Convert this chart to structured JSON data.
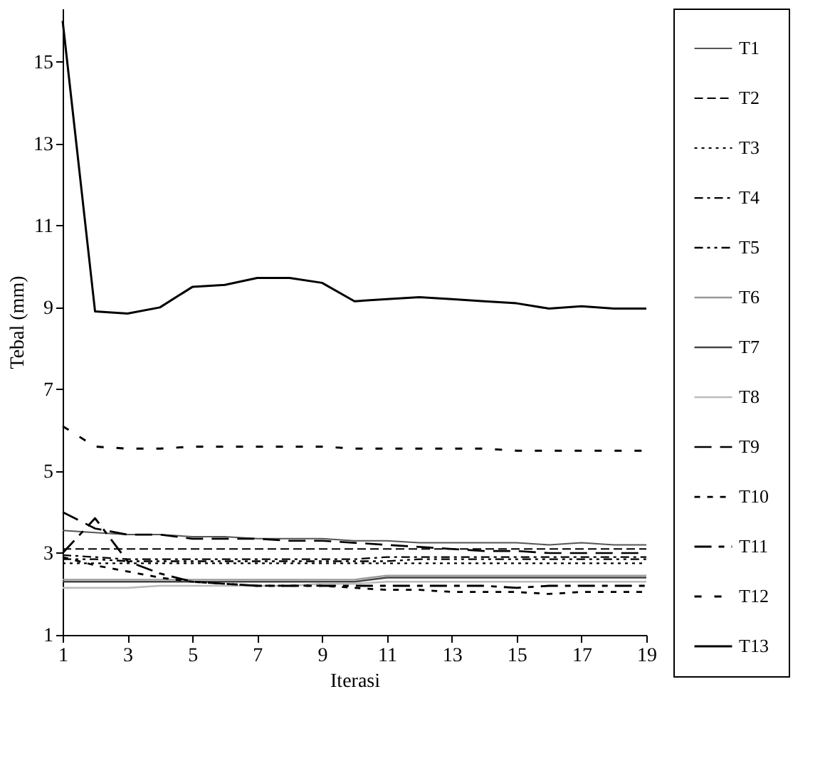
{
  "chart_data": {
    "type": "line",
    "xlabel": "Iterasi",
    "ylabel": "Tebal (mm)",
    "x": [
      1,
      2,
      3,
      4,
      5,
      6,
      7,
      8,
      9,
      10,
      11,
      12,
      13,
      14,
      15,
      16,
      17,
      18,
      19
    ],
    "xlim": [
      1,
      19
    ],
    "xticks": [
      1,
      3,
      5,
      7,
      9,
      11,
      13,
      15,
      17,
      19
    ],
    "ylim": [
      1,
      16.3
    ],
    "yticks": [
      1,
      3,
      5,
      7,
      9,
      11,
      13,
      15
    ],
    "grid": false,
    "legend": "right",
    "marker": "none",
    "series": [
      {
        "name": "T1",
        "color": "#555555",
        "line_style": "solid",
        "values": [
          3.55,
          3.5,
          3.45,
          3.45,
          3.4,
          3.4,
          3.35,
          3.35,
          3.35,
          3.3,
          3.3,
          3.25,
          3.25,
          3.25,
          3.25,
          3.2,
          3.25,
          3.2,
          3.2
        ]
      },
      {
        "name": "T2",
        "color": "#000000",
        "line_style": "dashed",
        "values": [
          3.1,
          3.1,
          3.1,
          3.1,
          3.1,
          3.1,
          3.1,
          3.1,
          3.1,
          3.1,
          3.1,
          3.1,
          3.1,
          3.1,
          3.1,
          3.1,
          3.1,
          3.1,
          3.1
        ]
      },
      {
        "name": "T3",
        "color": "#000000",
        "line_style": "dotted",
        "values": [
          2.75,
          2.75,
          2.75,
          2.75,
          2.75,
          2.75,
          2.75,
          2.75,
          2.75,
          2.75,
          2.75,
          2.75,
          2.75,
          2.75,
          2.75,
          2.75,
          2.75,
          2.75,
          2.75
        ]
      },
      {
        "name": "T4",
        "color": "#000000",
        "line_style": "dashed",
        "values": [
          2.95,
          2.9,
          2.85,
          2.85,
          2.85,
          2.85,
          2.85,
          2.85,
          2.85,
          2.85,
          2.9,
          2.9,
          2.9,
          2.9,
          2.9,
          2.9,
          2.9,
          2.9,
          2.9
        ]
      },
      {
        "name": "T5",
        "color": "#000000",
        "line_style": "dashed",
        "values": [
          2.85,
          2.85,
          2.8,
          2.8,
          2.8,
          2.8,
          2.8,
          2.8,
          2.8,
          2.8,
          2.8,
          2.85,
          2.85,
          2.85,
          2.85,
          2.85,
          2.85,
          2.85,
          2.85
        ]
      },
      {
        "name": "T6",
        "color": "#999999",
        "line_style": "solid",
        "values": [
          2.35,
          2.35,
          2.35,
          2.35,
          2.35,
          2.35,
          2.35,
          2.35,
          2.35,
          2.35,
          2.45,
          2.45,
          2.45,
          2.45,
          2.45,
          2.45,
          2.45,
          2.45,
          2.45
        ]
      },
      {
        "name": "T7",
        "color": "#444444",
        "line_style": "solid",
        "values": [
          2.3,
          2.3,
          2.3,
          2.3,
          2.3,
          2.3,
          2.3,
          2.3,
          2.3,
          2.3,
          2.4,
          2.4,
          2.4,
          2.4,
          2.4,
          2.4,
          2.4,
          2.4,
          2.4
        ]
      },
      {
        "name": "T8",
        "color": "#bbbbbb",
        "line_style": "solid",
        "values": [
          2.15,
          2.15,
          2.15,
          2.2,
          2.2,
          2.2,
          2.2,
          2.2,
          2.25,
          2.25,
          2.3,
          2.3,
          2.3,
          2.3,
          2.3,
          2.3,
          2.3,
          2.3,
          2.3
        ]
      },
      {
        "name": "T9",
        "color": "#000000",
        "line_style": "dashed",
        "values": [
          4.0,
          3.6,
          3.45,
          3.45,
          3.35,
          3.35,
          3.35,
          3.3,
          3.3,
          3.25,
          3.2,
          3.15,
          3.1,
          3.05,
          3.05,
          3.0,
          3.0,
          3.0,
          3.0
        ]
      },
      {
        "name": "T10",
        "color": "#000000",
        "line_style": "dashed",
        "values": [
          2.9,
          2.7,
          2.55,
          2.4,
          2.3,
          2.25,
          2.2,
          2.2,
          2.2,
          2.15,
          2.1,
          2.1,
          2.05,
          2.05,
          2.05,
          2.0,
          2.05,
          2.05,
          2.05
        ]
      },
      {
        "name": "T11",
        "color": "#000000",
        "line_style": "dashed",
        "values": [
          3.0,
          3.85,
          2.8,
          2.5,
          2.3,
          2.25,
          2.2,
          2.2,
          2.2,
          2.2,
          2.2,
          2.2,
          2.2,
          2.2,
          2.15,
          2.2,
          2.2,
          2.2,
          2.2
        ]
      },
      {
        "name": "T12",
        "color": "#000000",
        "line_style": "dashed",
        "values": [
          6.1,
          5.6,
          5.55,
          5.55,
          5.6,
          5.6,
          5.6,
          5.6,
          5.6,
          5.55,
          5.55,
          5.55,
          5.55,
          5.55,
          5.5,
          5.5,
          5.5,
          5.5,
          5.5
        ]
      },
      {
        "name": "T13",
        "color": "#000000",
        "line_style": "solid",
        "values": [
          16.0,
          8.9,
          8.85,
          9.0,
          9.5,
          9.55,
          9.72,
          9.72,
          9.6,
          9.15,
          9.2,
          9.25,
          9.2,
          9.15,
          9.1,
          8.97,
          9.03,
          8.97,
          8.97
        ]
      }
    ]
  }
}
